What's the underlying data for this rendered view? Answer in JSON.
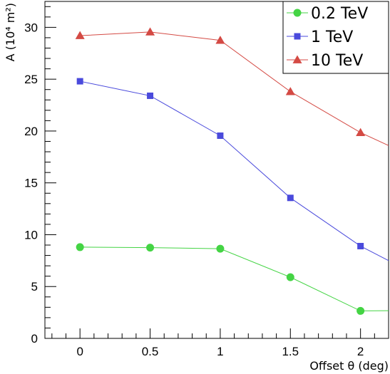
{
  "chart_data": {
    "type": "line",
    "xlabel": "Offset θ (deg)",
    "ylabel": "A (10⁴ m²)",
    "xlim": [
      -0.25,
      2.2
    ],
    "ylim": [
      0,
      32.5
    ],
    "xticks": [
      "0",
      "0.5",
      "1",
      "1.5",
      "2"
    ],
    "xtick_values": [
      0,
      0.5,
      1,
      1.5,
      2
    ],
    "yticks": [
      "0",
      "5",
      "10",
      "15",
      "20",
      "25",
      "30"
    ],
    "ytick_values": [
      0,
      5,
      10,
      15,
      20,
      25,
      30
    ],
    "x": [
      0,
      0.5,
      1,
      1.5,
      2
    ],
    "legend_position": "top-right",
    "series": [
      {
        "name": "0.2 TeV",
        "marker": "circle",
        "color": "#44d444",
        "values": [
          8.8,
          8.75,
          8.65,
          5.9,
          2.65
        ],
        "extend_to": [
          2.2,
          2.67
        ]
      },
      {
        "name": "1 TeV",
        "marker": "square",
        "color": "#4a4adc",
        "values": [
          24.8,
          23.4,
          19.55,
          13.55,
          8.9
        ],
        "extend_to": [
          2.2,
          7.5
        ]
      },
      {
        "name": "10 TeV",
        "marker": "triangle",
        "color": "#d44a44",
        "values": [
          29.2,
          29.55,
          28.75,
          23.8,
          19.85
        ],
        "extend_to": [
          2.2,
          18.6
        ]
      }
    ]
  }
}
